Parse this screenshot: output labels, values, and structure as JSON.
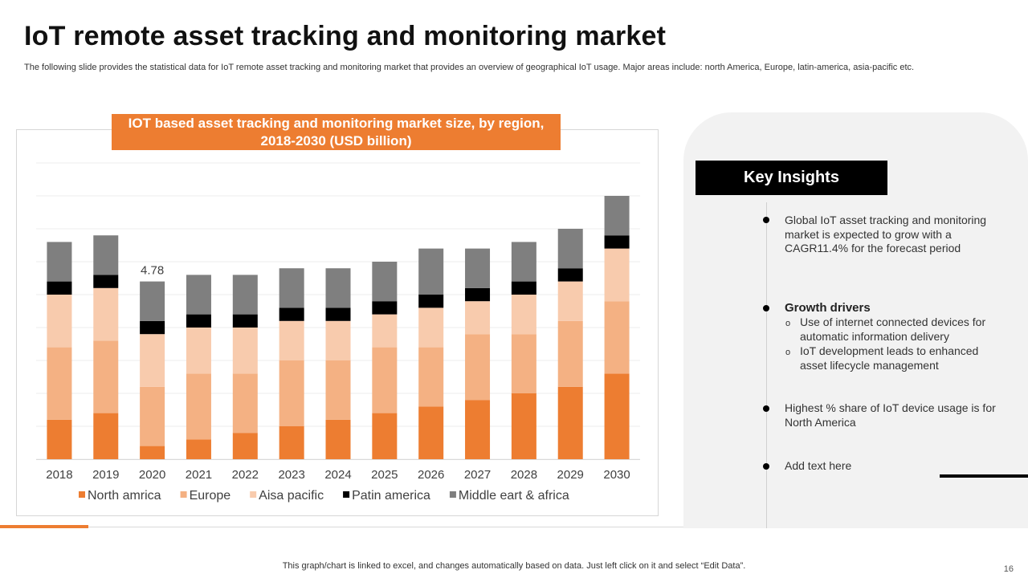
{
  "title": "IoT remote asset tracking and monitoring market",
  "subtitle": "The following slide provides the statistical data for IoT remote asset tracking and monitoring market that provides an overview of geographical IoT usage. Major areas include: north America, Europe, latin-america, asia-pacific etc.",
  "chart_data": {
    "type": "bar",
    "stacked": true,
    "title": "IOT based asset tracking and monitoring market size, by region, 2018-2030 (USD billion)",
    "categories": [
      "2018",
      "2019",
      "2020",
      "2021",
      "2022",
      "2023",
      "2024",
      "2025",
      "2026",
      "2027",
      "2028",
      "2029",
      "2030"
    ],
    "series": [
      {
        "name": "North amrica",
        "color": "#ed7d31",
        "values": [
          1.2,
          1.4,
          0.4,
          0.6,
          0.8,
          1.0,
          1.2,
          1.4,
          1.6,
          1.8,
          2.0,
          2.2,
          2.6
        ]
      },
      {
        "name": "Europe",
        "color": "#f4b183",
        "values": [
          2.2,
          2.2,
          1.8,
          2.0,
          1.8,
          2.0,
          1.8,
          2.0,
          1.8,
          2.0,
          1.8,
          2.0,
          2.2
        ]
      },
      {
        "name": "Aisa pacific",
        "color": "#f8cbad",
        "values": [
          1.6,
          1.6,
          1.6,
          1.4,
          1.4,
          1.2,
          1.2,
          1.0,
          1.2,
          1.0,
          1.2,
          1.2,
          1.6
        ]
      },
      {
        "name": "Patin america",
        "color": "#000000",
        "values": [
          0.4,
          0.4,
          0.4,
          0.4,
          0.4,
          0.4,
          0.4,
          0.4,
          0.4,
          0.4,
          0.4,
          0.4,
          0.4
        ]
      },
      {
        "name": "Middle eart & africa",
        "color": "#7f7f7f",
        "values": [
          1.2,
          1.2,
          1.2,
          1.2,
          1.2,
          1.2,
          1.2,
          1.2,
          1.4,
          1.2,
          1.2,
          1.2,
          1.2
        ]
      }
    ],
    "annotations": [
      {
        "category": "2020",
        "text": "4.78"
      }
    ],
    "ylim": [
      0,
      9
    ],
    "grid": true,
    "legend": "bottom",
    "xlabel": "",
    "ylabel": ""
  },
  "insights": {
    "header": "Key Insights",
    "bullet1": "Global IoT  asset tracking and monitoring market is expected to grow with a CAGR11.4% for the forecast period",
    "bullet2_title": "Growth drivers",
    "sub_marker": "o",
    "sub1": "Use of internet connected devices for automatic information delivery",
    "sub2": "IoT development leads to enhanced asset lifecycle management",
    "bullet3": "Highest % share of IoT device usage is for North America",
    "bullet4": "Add text here"
  },
  "footer": "This graph/chart is linked to excel,  and changes automatically based on data. Just left click on it and select “Edit Data”.",
  "page_number": "16"
}
